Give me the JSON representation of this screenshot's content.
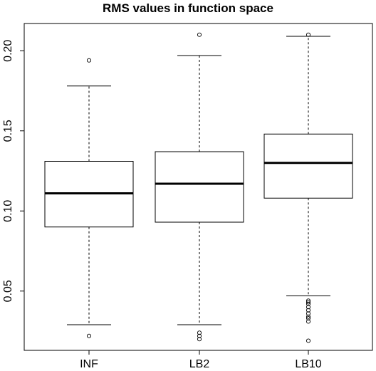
{
  "chart_data": {
    "type": "boxplot",
    "title": "RMS values in function space",
    "xlabel": "",
    "ylabel": "",
    "ylim": [
      0.013,
      0.217
    ],
    "yticks": [
      0.05,
      0.1,
      0.15,
      0.2
    ],
    "ytick_labels": [
      "0.05",
      "0.10",
      "0.15",
      "0.20"
    ],
    "categories": [
      "INF",
      "LB2",
      "LB10"
    ],
    "series": [
      {
        "category": "INF",
        "whisker_low": 0.029,
        "q1": 0.09,
        "median": 0.111,
        "q3": 0.131,
        "whisker_high": 0.178,
        "outliers": [
          0.022,
          0.194
        ]
      },
      {
        "category": "LB2",
        "whisker_low": 0.029,
        "q1": 0.093,
        "median": 0.117,
        "q3": 0.137,
        "whisker_high": 0.197,
        "outliers": [
          0.02,
          0.022,
          0.024,
          0.21
        ]
      },
      {
        "category": "LB10",
        "whisker_low": 0.047,
        "q1": 0.108,
        "median": 0.13,
        "q3": 0.148,
        "whisker_high": 0.209,
        "outliers": [
          0.019,
          0.031,
          0.033,
          0.034,
          0.036,
          0.038,
          0.04,
          0.042,
          0.043,
          0.044,
          0.21
        ]
      }
    ],
    "grid": false,
    "legend": "none"
  }
}
